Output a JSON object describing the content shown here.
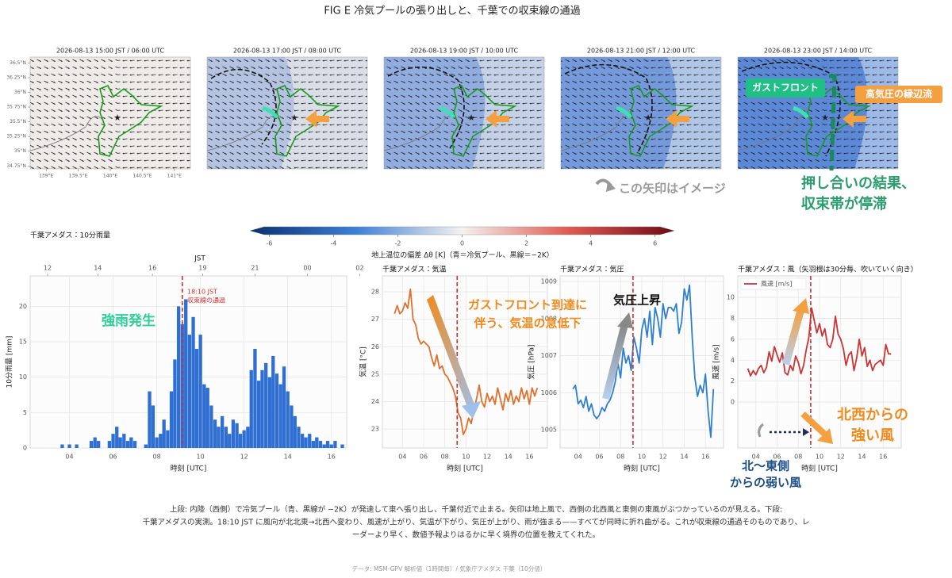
{
  "title": "FIG E  冷気プールの張り出しと、千葉での収束線の通過",
  "maps": {
    "titles": [
      "2026-08-13 15:00 JST / 06:00 UTC",
      "2026-08-13 17:00 JST / 08:00 UTC",
      "2026-08-13 19:00 JST / 10:00 UTC",
      "2026-08-13 21:00 JST / 12:00 UTC",
      "2026-08-13 23:00 JST / 14:00 UTC"
    ],
    "xlim": [
      138.75,
      141.25
    ],
    "ylim": [
      34.7,
      36.6
    ],
    "xticks": [
      {
        "value": 139,
        "label": "139°E"
      },
      {
        "value": 139.5,
        "label": "139.5°E"
      },
      {
        "value": 140,
        "label": "140°E"
      },
      {
        "value": 140.5,
        "label": "140.5°E"
      },
      {
        "value": 141,
        "label": "141°E"
      }
    ],
    "yticks": [
      {
        "value": 36.5,
        "label": "36.5°N"
      },
      {
        "value": 36.25,
        "label": "36.25°N"
      },
      {
        "value": 36,
        "label": "36°N"
      },
      {
        "value": 35.75,
        "label": "35.75°N"
      },
      {
        "value": 35.5,
        "label": "35.5°N"
      },
      {
        "value": 35.25,
        "label": "35.25°N"
      },
      {
        "value": 35,
        "label": "35°N"
      },
      {
        "value": 34.75,
        "label": "34.75°N"
      }
    ],
    "gust_front": "ガストフロント",
    "outflow": "高気圧の縁辺流",
    "arrow_note": "この矢印はイメージ",
    "result_note": [
      "押し合いの結果、",
      "収束帯が停滞"
    ]
  },
  "colorbar": {
    "lim": [
      -6.6,
      6.6
    ],
    "ticks": [
      -6,
      -4,
      -2,
      0,
      2,
      4,
      6
    ],
    "label": "地上温位の偏差 Δθ [K]（青＝冷気プール、黒線＝−2K）"
  },
  "chart_data": [
    {
      "type": "bar",
      "title": "千葉アメダス：10分雨量",
      "xlabel": "時刻 [UTC]",
      "ylabel": "10分雨量 [mm]",
      "x2label": "JST",
      "color": "#2f6fd1",
      "x": [
        3.5,
        3.67,
        3.83,
        4,
        4.17,
        4.33,
        4.5,
        4.67,
        4.83,
        5,
        5.17,
        5.33,
        5.5,
        5.67,
        5.83,
        6,
        6.17,
        6.33,
        6.5,
        6.67,
        6.83,
        7,
        7.17,
        7.33,
        7.5,
        7.67,
        7.83,
        8,
        8.17,
        8.33,
        8.5,
        8.67,
        8.83,
        9,
        9.17,
        9.33,
        9.5,
        9.67,
        9.83,
        10,
        10.17,
        10.33,
        10.5,
        10.67,
        10.83,
        11,
        11.17,
        11.33,
        11.5,
        11.67,
        11.83,
        12,
        12.17,
        12.33,
        12.5,
        12.67,
        12.83,
        13,
        13.17,
        13.33,
        13.5,
        13.67,
        13.83,
        14,
        14.17,
        14.33,
        14.5,
        14.67,
        14.83,
        15,
        15.17,
        15.33,
        15.5,
        15.67,
        15.83,
        16,
        16.17,
        16.33,
        16.5
      ],
      "values": [
        0,
        0.5,
        0,
        0.5,
        0,
        0.5,
        0,
        0,
        0,
        1,
        1.5,
        1,
        0,
        0,
        1,
        2,
        3,
        1.5,
        2,
        1,
        1.5,
        1,
        0,
        0,
        0.5,
        8,
        6,
        1.5,
        2,
        4,
        2.5,
        8,
        12.5,
        20,
        17.5,
        21,
        16,
        18.5,
        14,
        16,
        9,
        8.5,
        6,
        4,
        3,
        4.5,
        3,
        2,
        4,
        3.5,
        2,
        2.5,
        3,
        11,
        14,
        9.5,
        11,
        12,
        10,
        13,
        10.5,
        9,
        11.5,
        8,
        6,
        4.5,
        3,
        2,
        1.5,
        2,
        1,
        1.5,
        1,
        0.5,
        1,
        0.5,
        1,
        0,
        0.5
      ],
      "xlim": [
        2.2,
        16.7
      ],
      "ylim": [
        0,
        24.3
      ],
      "xticks": [
        {
          "value": 4,
          "label": "04"
        },
        {
          "value": 6,
          "label": "06"
        },
        {
          "value": 8,
          "label": "08"
        },
        {
          "value": 10,
          "label": "10"
        },
        {
          "value": 12,
          "label": "12"
        },
        {
          "value": 14,
          "label": "14"
        },
        {
          "value": 16,
          "label": "16"
        }
      ],
      "yticks": [
        0,
        5,
        10,
        15,
        20
      ],
      "x2ticks": [
        {
          "value": 3.0,
          "label": "12"
        },
        {
          "value": 5.3,
          "label": "14"
        },
        {
          "value": 7.8,
          "label": "16"
        },
        {
          "value": 10.1,
          "label": "19"
        },
        {
          "value": 12.5,
          "label": "21"
        },
        {
          "value": 14.9,
          "label": "00"
        },
        {
          "value": 17.3,
          "label": "02"
        }
      ],
      "grid": true,
      "marker_x": 9.17,
      "marker_color": "#d03030",
      "marker_label": [
        "18:10 JST",
        "収束線の通過"
      ],
      "note": "強雨発生"
    },
    {
      "type": "line",
      "title": "千葉アメダス：気温",
      "xlabel": "時刻 [UTC]",
      "ylabel": "気温 [°C]",
      "color": "#e0702c",
      "x": [
        3.25,
        3.5,
        3.75,
        4,
        4.25,
        4.5,
        4.75,
        5,
        5.25,
        5.5,
        5.75,
        6,
        6.25,
        6.5,
        6.75,
        7,
        7.25,
        7.5,
        7.75,
        8,
        8.25,
        8.5,
        8.75,
        9,
        9.25,
        9.5,
        9.75,
        10,
        10.25,
        10.5,
        10.75,
        11,
        11.25,
        11.5,
        11.75,
        12,
        12.25,
        12.5,
        12.75,
        13,
        13.25,
        13.5,
        13.75,
        14,
        14.25,
        14.5,
        14.75,
        15,
        15.25,
        15.5,
        15.75,
        16,
        16.25,
        16.5,
        16.75
      ],
      "values": [
        27.2,
        27.5,
        27.2,
        27.3,
        27.6,
        27.4,
        28.1,
        27.0,
        26.8,
        26.3,
        26.1,
        26.2,
        26.1,
        26.0,
        25.6,
        25.3,
        25.7,
        25.2,
        25.3,
        25.0,
        24.9,
        24.7,
        24.5,
        24.2,
        23.6,
        23.4,
        22.8,
        23.0,
        23.4,
        23.2,
        23.7,
        24.1,
        24.6,
        24.0,
        23.8,
        24.3,
        24.0,
        24.2,
        23.9,
        24.5,
        24.1,
        23.7,
        24.3,
        24.0,
        24.4,
        23.9,
        24.2,
        24.0,
        24.5,
        24.1,
        24.4,
        23.9,
        24.5,
        24.2,
        24.5
      ],
      "xlim": [
        2.1,
        17.7
      ],
      "ylim": [
        22.31,
        28.58
      ],
      "xticks": [
        {
          "value": 4,
          "label": "04"
        },
        {
          "value": 6,
          "label": "06"
        },
        {
          "value": 8,
          "label": "08"
        },
        {
          "value": 10,
          "label": "10"
        },
        {
          "value": 12,
          "label": "12"
        },
        {
          "value": 14,
          "label": "14"
        },
        {
          "value": 16,
          "label": "16"
        }
      ],
      "yticks": [
        23,
        24,
        25,
        26,
        27,
        28
      ],
      "grid": true,
      "marker_x": 9.17,
      "marker_color": "#d03030",
      "note": [
        "ガストフロント到達に",
        "伴う、気温の急低下"
      ]
    },
    {
      "type": "line",
      "title": "千葉アメダス：気圧",
      "xlabel": "時刻 [UTC]",
      "ylabel": "気圧 [hPa]",
      "color": "#2f7fd0",
      "x": [
        3.5,
        3.75,
        4,
        4.25,
        4.5,
        4.75,
        5,
        5.25,
        5.5,
        5.75,
        6,
        6.25,
        6.5,
        6.75,
        7,
        7.25,
        7.5,
        7.75,
        8,
        8.25,
        8.5,
        8.75,
        9,
        9.25,
        9.5,
        9.75,
        10,
        10.25,
        10.5,
        10.75,
        11,
        11.25,
        11.5,
        11.75,
        12,
        12.25,
        12.5,
        12.75,
        13,
        13.25,
        13.5,
        13.75,
        14,
        14.25,
        14.5,
        14.75,
        15,
        15.25,
        15.5,
        15.75,
        16,
        16.25,
        16.5,
        16.75
      ],
      "values": [
        1006.1,
        1006.2,
        1005.7,
        1005.8,
        1005.6,
        1005.9,
        1005.5,
        1005.7,
        1005.4,
        1005.3,
        1005.4,
        1005.6,
        1005.5,
        1005.7,
        1005.8,
        1006.0,
        1006.3,
        1006.8,
        1006.4,
        1007.2,
        1006.8,
        1007.0,
        1006.6,
        1007.5,
        1007.2,
        1006.8,
        1007.7,
        1008.0,
        1007.5,
        1008.2,
        1007.3,
        1008.3,
        1008.0,
        1007.5,
        1008.4,
        1008.0,
        1008.3,
        1008.3,
        1008.2,
        1008.4,
        1007.6,
        1007.9,
        1008.8,
        1008.5,
        1008.9,
        1007.5,
        1006.4,
        1005.9,
        1006.2,
        1006.0,
        1006.5,
        1005.5,
        1004.8,
        1006.1
      ],
      "xlim": [
        2.3,
        17.7
      ],
      "ylim": [
        1004.51,
        1009.15
      ],
      "xticks": [
        {
          "value": 4,
          "label": "04"
        },
        {
          "value": 6,
          "label": "06"
        },
        {
          "value": 8,
          "label": "08"
        },
        {
          "value": 10,
          "label": "10"
        },
        {
          "value": 12,
          "label": "12"
        },
        {
          "value": 14,
          "label": "14"
        },
        {
          "value": 16,
          "label": "16"
        }
      ],
      "yticks": [
        1005,
        1006,
        1007,
        1008,
        1009
      ],
      "grid": true,
      "marker_x": 9.17,
      "marker_color": "#d03030",
      "note": "気圧上昇"
    },
    {
      "type": "line",
      "title": "千葉アメダス：風（矢羽根は30分毎、吹いていく向き）",
      "xlabel": "時刻 [UTC]",
      "ylabel": "風速 [m/s]",
      "x": [
        3.25,
        3.5,
        3.75,
        4,
        4.25,
        4.5,
        4.75,
        5,
        5.25,
        5.5,
        5.75,
        6,
        6.25,
        6.5,
        6.75,
        7,
        7.25,
        7.5,
        7.75,
        8,
        8.25,
        8.5,
        8.75,
        9,
        9.25,
        9.5,
        9.75,
        10,
        10.25,
        10.5,
        10.75,
        11,
        11.25,
        11.5,
        11.75,
        12,
        12.25,
        12.5,
        12.75,
        13,
        13.25,
        13.5,
        13.75,
        14,
        14.25,
        14.5,
        14.75,
        15,
        15.25,
        15.5,
        15.75,
        16,
        16.25,
        16.5,
        16.75
      ],
      "series": [
        {
          "name": "風速 [m/s]",
          "color": "#cc3333",
          "values": [
            3.2,
            2.5,
            3.0,
            2.6,
            3.2,
            3.5,
            2.8,
            3.3,
            4.8,
            3.9,
            5.3,
            4.5,
            3.8,
            4.7,
            2.8,
            2.6,
            3.5,
            3.0,
            4.4,
            3.8,
            2.7,
            3.5,
            5.0,
            6.2,
            9.0,
            7.8,
            6.6,
            7.5,
            6.3,
            7.0,
            5.5,
            5.2,
            6.0,
            8.2,
            6.5,
            6.0,
            5.1,
            3.5,
            4.5,
            4.8,
            3.0,
            4.2,
            6.0,
            4.4,
            5.2,
            3.4,
            4.0,
            3.0,
            3.6,
            3.8,
            4.0,
            3.5,
            5.5,
            4.6,
            4.6
          ]
        }
      ],
      "xlim": [
        2.3,
        17.7
      ],
      "ylim": [
        -4.39,
        12.05
      ],
      "xticks": [
        {
          "value": 4,
          "label": "04"
        },
        {
          "value": 6,
          "label": "06"
        },
        {
          "value": 8,
          "label": "08"
        },
        {
          "value": 10,
          "label": "10"
        },
        {
          "value": 12,
          "label": "12"
        },
        {
          "value": 14,
          "label": "14"
        },
        {
          "value": 16,
          "label": "16"
        }
      ],
      "yticks": [
        0,
        2,
        4,
        6,
        8,
        10
      ],
      "grid": true,
      "legend": "upper left",
      "marker_x": 9.17,
      "marker_color": "#d03030",
      "note_strong": [
        "北西からの",
        "強い風"
      ],
      "note_weak": [
        "北～東側",
        "からの弱い風"
      ]
    }
  ],
  "caption": [
    "上段: 内陸（西側）で冷気プール（青、黒線が −2K）が発達して東へ張り出し、千葉付近で止まる。矢印は地上風で、西側の北西風と東側の東風がぶつかっているのが見える。下段:",
    "千葉アメダスの実測。18:10 JST に風向が北北東→北西へ変わり、風速が上がり、気温が下がり、気圧が上がり、雨が強まる——すべてが同時に折れ曲がる。これが収束線の通過そのものであり、レ",
    "ーダーより早く、数値予報よりはるかに早く境界の位置を教えてくれた。"
  ],
  "source": "データ: MSM-GPV 解析値（1時間毎）/ 気象庁アメダス 千葉（10分値）"
}
